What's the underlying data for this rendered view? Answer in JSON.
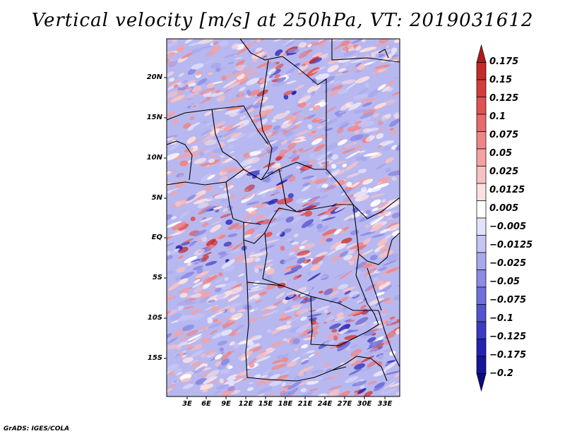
{
  "title": "Vertical velocity [m/s] at 250hPa, VT: 2019031612",
  "lat_labels": [
    "20N",
    "15N",
    "10N",
    "5N",
    "EQ",
    "5S",
    "10S",
    "15S"
  ],
  "lon_labels": [
    "3E",
    "6E",
    "9E",
    "12E",
    "15E",
    "18E",
    "21E",
    "24E",
    "27E",
    "30E",
    "33E"
  ],
  "colorbar": {
    "labels": [
      "0.175",
      "0.15",
      "0.125",
      "0.1",
      "0.075",
      "0.05",
      "0.025",
      "0.0125",
      "0.005",
      "−0.005",
      "−0.0125",
      "−0.025",
      "−0.05",
      "−0.075",
      "−0.1",
      "−0.125",
      "−0.175",
      "−0.2"
    ],
    "colors": [
      "#b01a1a",
      "#c42a2a",
      "#d23c3c",
      "#df5252",
      "#e86a6a",
      "#ef8585",
      "#f4a2a2",
      "#f8c2c2",
      "#fbe0e0",
      "#ffffff",
      "#e2e2fb",
      "#c4c4f5",
      "#a8a8ee",
      "#8c8ce4",
      "#7070da",
      "#5454cf",
      "#3a3ac2",
      "#2424b0",
      "#16169a",
      "#0c0c80"
    ]
  },
  "credit": "GrADS: IGES/COLA"
}
